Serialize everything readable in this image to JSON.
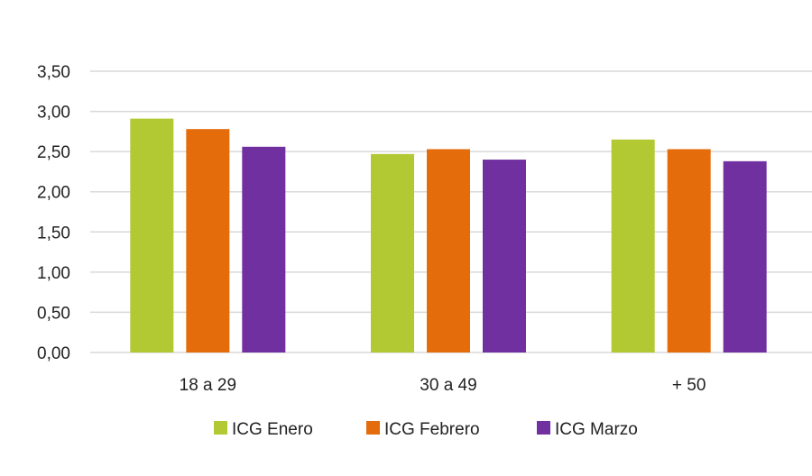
{
  "chart_data": {
    "type": "bar",
    "categories": [
      "18 a 29",
      "30 a 49",
      "+ 50"
    ],
    "series": [
      {
        "name": "ICG Enero",
        "color": "#b3c934",
        "values": [
          2.91,
          2.47,
          2.65
        ]
      },
      {
        "name": "ICG Febrero",
        "color": "#e46c0a",
        "values": [
          2.78,
          2.53,
          2.53
        ]
      },
      {
        "name": "ICG Marzo",
        "color": "#7030a0",
        "values": [
          2.56,
          2.4,
          2.38
        ]
      }
    ],
    "ylim": [
      0,
      3.5
    ],
    "yticks": [
      "0,00",
      "0,50",
      "1,00",
      "1,50",
      "2,00",
      "2,50",
      "3,00",
      "3,50"
    ],
    "grid": true,
    "legend": "bottom",
    "title": "",
    "xlabel": "",
    "ylabel": ""
  }
}
